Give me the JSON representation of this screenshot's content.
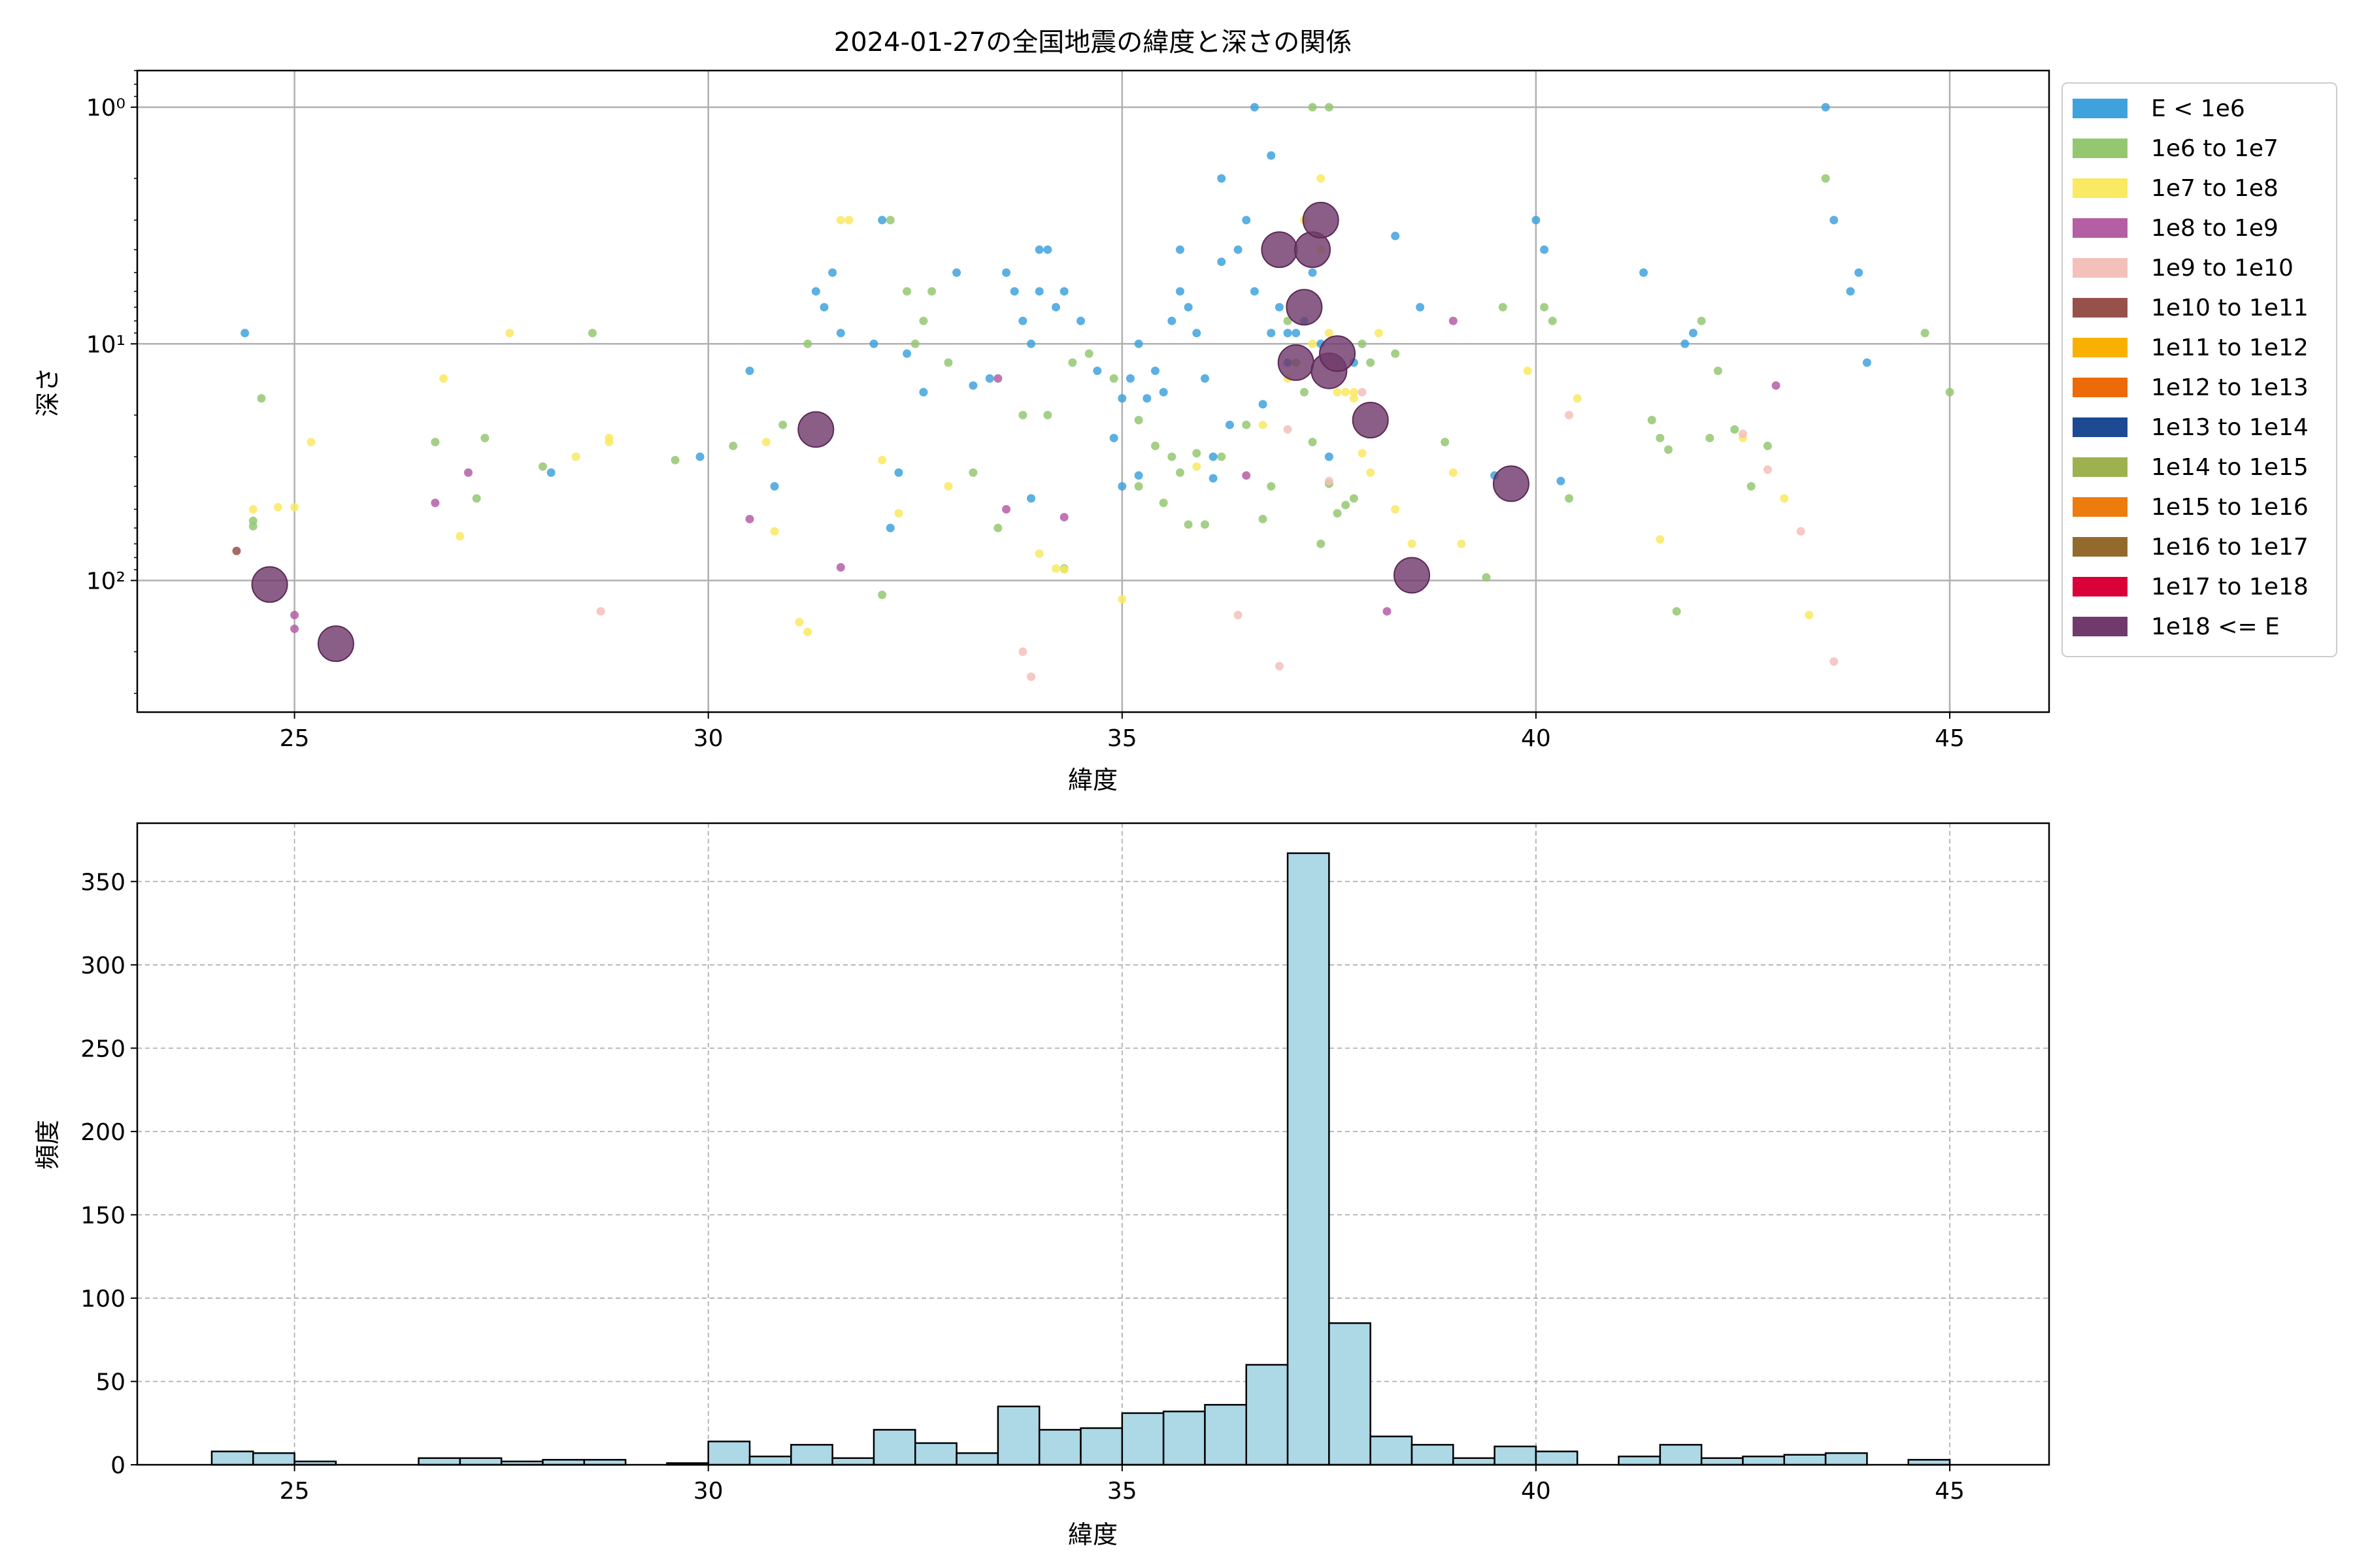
{
  "chart_data": [
    {
      "type": "scatter",
      "title": "2024-01-27の全国地震の緯度と深さの関係",
      "xlabel": "緯度",
      "ylabel": "深さ",
      "xlim": [
        23.1,
        46.2
      ],
      "ylim": [
        0.7,
        360
      ],
      "y_scale": "log",
      "y_inverted": true,
      "xticks": [
        25,
        30,
        35,
        40,
        45
      ],
      "yticks": [
        {
          "value": 1,
          "label": "10⁰"
        },
        {
          "value": 10,
          "label": "10¹"
        },
        {
          "value": 100,
          "label": "10²"
        }
      ],
      "grid": true,
      "legend_position": "outside-right",
      "legend": [
        {
          "label": "E < 1e6",
          "color": "#3fa2dd"
        },
        {
          "label": "1e6 to 1e7",
          "color": "#93c871"
        },
        {
          "label": "1e7 to 1e8",
          "color": "#fae962"
        },
        {
          "label": "1e8 to 1e9",
          "color": "#b45ea4"
        },
        {
          "label": "1e9 to 1e10",
          "color": "#f3c0ba"
        },
        {
          "label": "1e10 to 1e11",
          "color": "#96514b"
        },
        {
          "label": "1e11 to 1e12",
          "color": "#f8b100"
        },
        {
          "label": "1e12 to 1e13",
          "color": "#ec6a08"
        },
        {
          "label": "1e13 to 1e14",
          "color": "#1c4a93"
        },
        {
          "label": "1e14 to 1e15",
          "color": "#9db24f"
        },
        {
          "label": "1e15 to 1e16",
          "color": "#ed7c0f"
        },
        {
          "label": "1e16 to 1e17",
          "color": "#946a2c"
        },
        {
          "label": "1e17 to 1e18",
          "color": "#da0038"
        },
        {
          "label": "1e18 <= E",
          "color": "#713a6c"
        }
      ],
      "series": [
        {
          "energy_class": 0,
          "color": "#3fa2dd",
          "x": [
            24.4,
            28.1,
            29.9,
            30.5,
            30.8,
            31.3,
            31.4,
            31.5,
            31.6,
            32.0,
            32.1,
            32.2,
            32.3,
            32.4,
            32.6,
            33.0,
            33.2,
            33.4,
            33.6,
            33.8,
            33.9,
            34.0,
            34.1,
            34.2,
            34.3,
            34.5,
            34.7,
            34.9,
            35.0,
            35.1,
            35.2,
            35.3,
            35.4,
            35.5,
            35.6,
            35.7,
            35.8,
            35.9,
            36.0,
            36.1,
            36.2,
            36.3,
            36.4,
            36.5,
            36.6,
            36.7,
            36.8,
            36.9,
            37.0,
            37.1,
            37.2,
            37.3,
            37.4,
            36.6,
            36.8,
            37.0,
            35.0,
            35.2,
            36.1,
            37.8,
            38.6,
            39.5,
            40.0,
            40.1,
            40.3,
            41.3,
            41.8,
            41.9,
            43.5,
            43.8,
            43.9,
            44.0,
            43.6,
            34.0,
            33.7,
            33.9,
            35.7,
            36.2,
            37.5,
            38.3
          ],
          "y": [
            9,
            35,
            30,
            13,
            40,
            6,
            7,
            5,
            9,
            10,
            3,
            60,
            35,
            11,
            16,
            5,
            15,
            14,
            5,
            8,
            10,
            6,
            4,
            7,
            6,
            8,
            13,
            25,
            17,
            14,
            10,
            17,
            13,
            16,
            8,
            6,
            7,
            9,
            14,
            30,
            2,
            22,
            4,
            3,
            6,
            18,
            9,
            7,
            12,
            9,
            8,
            5,
            10,
            1,
            1.6,
            9,
            40,
            36,
            37,
            12,
            7,
            36,
            3,
            4,
            38,
            5,
            10,
            9,
            1,
            6,
            5,
            12,
            3,
            4,
            6,
            45,
            4,
            4.5,
            30,
            3.5
          ]
        },
        {
          "energy_class": 1,
          "color": "#93c871",
          "x": [
            24.5,
            24.5,
            24.6,
            26.7,
            27.2,
            27.3,
            28.0,
            28.6,
            29.6,
            30.3,
            30.9,
            31.2,
            32.1,
            32.2,
            32.4,
            32.5,
            32.6,
            32.7,
            32.9,
            33.2,
            33.5,
            33.8,
            34.1,
            34.3,
            34.4,
            34.6,
            34.9,
            35.2,
            35.4,
            35.5,
            35.7,
            35.8,
            35.9,
            36.0,
            36.2,
            36.5,
            36.8,
            37.0,
            37.1,
            37.2,
            37.3,
            37.4,
            37.5,
            37.6,
            37.7,
            37.8,
            38.3,
            38.9,
            39.4,
            39.6,
            40.1,
            40.2,
            40.4,
            41.4,
            41.5,
            41.6,
            41.7,
            42.0,
            42.1,
            42.2,
            42.4,
            42.6,
            42.8,
            43.5,
            44.7,
            45.0,
            37.3,
            37.5,
            37.9,
            38.0,
            36.7,
            35.6,
            35.2
          ],
          "y": [
            59,
            56,
            17,
            26,
            45,
            25,
            33,
            9,
            31,
            27,
            22,
            10,
            115,
            3,
            6,
            10,
            8,
            6,
            12,
            35,
            60,
            20,
            20,
            89,
            12,
            11,
            14,
            21,
            27,
            47,
            35,
            58,
            29,
            58,
            30,
            22,
            40,
            8,
            12,
            16,
            26,
            70,
            39,
            52,
            48,
            45,
            11,
            26,
            97,
            7,
            7,
            8,
            45,
            21,
            25,
            28,
            135,
            8,
            25,
            13,
            23,
            40,
            27,
            2,
            9,
            16,
            1,
            1,
            10,
            12,
            55,
            30,
            40
          ]
        },
        {
          "energy_class": 2,
          "color": "#fae962",
          "x": [
            24.5,
            24.8,
            25.0,
            25.2,
            26.8,
            27.0,
            27.6,
            28.4,
            28.8,
            28.8,
            30.7,
            30.8,
            31.1,
            31.2,
            31.6,
            31.7,
            32.1,
            32.3,
            32.9,
            34.0,
            34.2,
            34.3,
            35.0,
            35.9,
            36.7,
            37.0,
            37.3,
            37.4,
            37.5,
            37.6,
            37.7,
            37.8,
            37.9,
            38.0,
            38.3,
            38.5,
            39.0,
            39.1,
            39.9,
            40.5,
            41.5,
            42.5,
            43.0,
            43.3,
            37.2,
            37.4,
            37.6,
            37.8,
            38.1
          ],
          "y": [
            50,
            49,
            49,
            26,
            14,
            65,
            9,
            30,
            26,
            25,
            26,
            62,
            150,
            165,
            3,
            3,
            31,
            52,
            40,
            77,
            89,
            90,
            120,
            33,
            22,
            14,
            10,
            2,
            9,
            12,
            16,
            17,
            29,
            35,
            50,
            70,
            35,
            70,
            13,
            17,
            67,
            25,
            45,
            140,
            3,
            4,
            16,
            16,
            9
          ]
        },
        {
          "energy_class": 3,
          "color": "#b45ea4",
          "x": [
            25.0,
            25.0,
            26.7,
            27.1,
            30.5,
            31.6,
            33.5,
            33.6,
            34.3,
            38.2,
            39.0,
            42.9,
            36.5
          ],
          "y": [
            140,
            160,
            47,
            35,
            55,
            88,
            14,
            50,
            54,
            135,
            8,
            15,
            36
          ]
        },
        {
          "energy_class": 4,
          "color": "#f3c0ba",
          "x": [
            28.7,
            33.8,
            33.9,
            36.4,
            37.0,
            37.5,
            37.9,
            40.4,
            42.5,
            42.8,
            43.2,
            43.6,
            36.9
          ],
          "y": [
            135,
            200,
            255,
            140,
            23,
            38,
            16,
            20,
            24,
            34,
            62,
            220,
            230
          ]
        },
        {
          "energy_class": 5,
          "color": "#96514b",
          "x": [
            24.3
          ],
          "y": [
            75
          ]
        },
        {
          "energy_class": 13,
          "color": "#713a6c",
          "x": [
            24.7,
            25.5,
            31.3,
            36.9,
            37.1,
            37.2,
            37.3,
            37.4,
            37.5,
            37.6,
            38.0,
            38.5,
            39.7
          ],
          "y": [
            104,
            185,
            23,
            4,
            12,
            7,
            4,
            3,
            13,
            11,
            21,
            95,
            39
          ],
          "size_class": "large"
        }
      ]
    },
    {
      "type": "bar",
      "subtype": "histogram",
      "xlabel": "緯度",
      "ylabel": "頻度",
      "xlim": [
        23.1,
        46.2
      ],
      "ylim": [
        0,
        385
      ],
      "xticks": [
        25,
        30,
        35,
        40,
        45
      ],
      "yticks": [
        0,
        50,
        100,
        150,
        200,
        250,
        300,
        350
      ],
      "grid": true,
      "bar_color": "#add8e6",
      "bin_edges": [
        24.0,
        24.5,
        25.0,
        25.5,
        26.0,
        26.5,
        27.0,
        27.5,
        28.0,
        28.5,
        29.0,
        29.5,
        30.0,
        30.5,
        31.0,
        31.5,
        32.0,
        32.5,
        33.0,
        33.5,
        34.0,
        34.5,
        35.0,
        35.5,
        36.0,
        36.5,
        37.0,
        37.5,
        38.0,
        38.5,
        39.0,
        39.5,
        40.0,
        40.5,
        41.0,
        41.5,
        42.0,
        42.5,
        43.0,
        43.5,
        44.0,
        44.5,
        45.0
      ],
      "values": [
        8,
        7,
        2,
        0,
        0,
        4,
        4,
        2,
        3,
        3,
        0,
        1,
        14,
        5,
        12,
        4,
        21,
        13,
        7,
        35,
        21,
        22,
        31,
        32,
        36,
        60,
        367,
        85,
        17,
        12,
        4,
        11,
        8,
        0,
        5,
        12,
        4,
        5,
        6,
        7,
        0,
        3
      ]
    }
  ]
}
